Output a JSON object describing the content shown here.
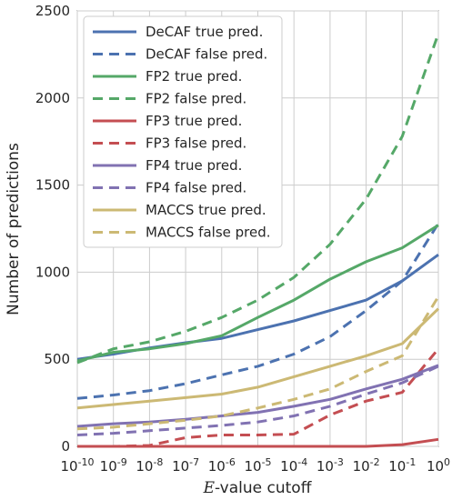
{
  "chart_data": {
    "type": "line",
    "title": "",
    "xlabel_italic": "E",
    "xlabel_rest": "-value cutoff",
    "ylabel": "Number of predictions",
    "x_ticks": [
      {
        "base": "10",
        "exp": "-10"
      },
      {
        "base": "10",
        "exp": "-9"
      },
      {
        "base": "10",
        "exp": "-8"
      },
      {
        "base": "10",
        "exp": "-7"
      },
      {
        "base": "10",
        "exp": "-6"
      },
      {
        "base": "10",
        "exp": "-5"
      },
      {
        "base": "10",
        "exp": "-4"
      },
      {
        "base": "10",
        "exp": "-3"
      },
      {
        "base": "10",
        "exp": "-2"
      },
      {
        "base": "10",
        "exp": "-1"
      },
      {
        "base": "10",
        "exp": "0"
      }
    ],
    "x_exponents": [
      -10,
      -9,
      -8,
      -7,
      -6,
      -5,
      -4,
      -3,
      -2,
      -1,
      0
    ],
    "xscale": "log",
    "xlim": [
      -10,
      0
    ],
    "ylim": [
      0,
      2500
    ],
    "y_ticks": [
      "0",
      "500",
      "1000",
      "1500",
      "2000",
      "2500"
    ],
    "y_tick_values": [
      0,
      500,
      1000,
      1500,
      2000,
      2500
    ],
    "grid": true,
    "legend_position": "top-left",
    "series": [
      {
        "name": "DeCAF true pred.",
        "color": "#4c72b0",
        "style": "solid",
        "values": [
          500,
          530,
          565,
          595,
          620,
          670,
          720,
          780,
          840,
          950,
          1100
        ]
      },
      {
        "name": "DeCAF false pred.",
        "color": "#4c72b0",
        "style": "dashed",
        "values": [
          275,
          295,
          320,
          360,
          410,
          460,
          530,
          630,
          780,
          950,
          1280
        ]
      },
      {
        "name": "FP2 true pred.",
        "color": "#55a868",
        "style": "solid",
        "values": [
          490,
          540,
          560,
          590,
          635,
          740,
          840,
          960,
          1060,
          1140,
          1270
        ]
      },
      {
        "name": "FP2 false pred.",
        "color": "#55a868",
        "style": "dashed",
        "values": [
          480,
          560,
          600,
          660,
          740,
          840,
          970,
          1160,
          1420,
          1780,
          2370
        ]
      },
      {
        "name": "FP3 true pred.",
        "color": "#c44e52",
        "style": "solid",
        "values": [
          0,
          0,
          0,
          0,
          0,
          0,
          0,
          0,
          0,
          10,
          40
        ]
      },
      {
        "name": "FP3 false pred.",
        "color": "#c44e52",
        "style": "dashed",
        "values": [
          0,
          0,
          5,
          50,
          65,
          65,
          70,
          180,
          260,
          310,
          560
        ]
      },
      {
        "name": "FP4 true pred.",
        "color": "#8172b2",
        "style": "solid",
        "values": [
          115,
          130,
          140,
          155,
          175,
          195,
          230,
          270,
          330,
          385,
          465
        ]
      },
      {
        "name": "FP4 false pred.",
        "color": "#8172b2",
        "style": "dashed",
        "values": [
          65,
          75,
          90,
          105,
          120,
          140,
          175,
          230,
          300,
          365,
          460
        ]
      },
      {
        "name": "MACCS true pred.",
        "color": "#ccb974",
        "style": "solid",
        "values": [
          220,
          240,
          260,
          280,
          300,
          340,
          400,
          460,
          520,
          590,
          790
        ]
      },
      {
        "name": "MACCS false pred.",
        "color": "#ccb974",
        "style": "dashed",
        "values": [
          100,
          110,
          130,
          150,
          175,
          220,
          270,
          330,
          430,
          520,
          860
        ]
      }
    ]
  }
}
